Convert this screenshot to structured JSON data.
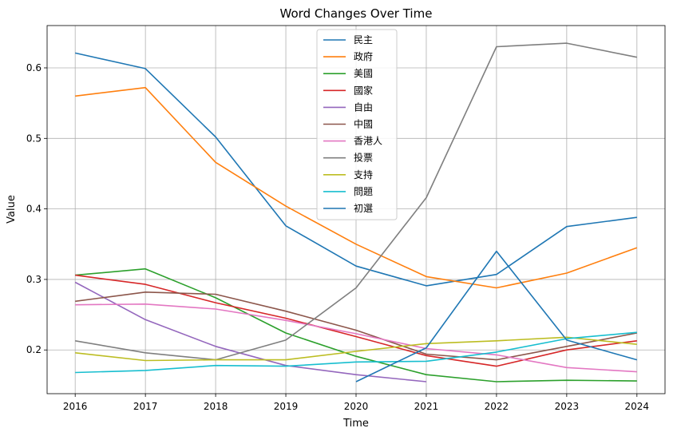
{
  "chart_data": {
    "type": "line",
    "title": "Word Changes Over Time",
    "xlabel": "Time",
    "ylabel": "Value",
    "x": [
      2016,
      2017,
      2018,
      2019,
      2020,
      2021,
      2022,
      2023,
      2024
    ],
    "xlim": [
      2015.6,
      2024.4
    ],
    "ylim": [
      0.138,
      0.66
    ],
    "yticks": [
      0.2,
      0.3,
      0.4,
      0.5,
      0.6
    ],
    "yticklabels": [
      "0.2",
      "0.3",
      "0.4",
      "0.5",
      "0.6"
    ],
    "grid": true,
    "legend_position": "top-center",
    "series": [
      {
        "name": "民主",
        "color": "#1f77b4",
        "values": [
          0.621,
          0.599,
          0.502,
          0.376,
          0.319,
          0.291,
          0.307,
          0.375,
          0.388
        ]
      },
      {
        "name": "政府",
        "color": "#ff7f0e",
        "values": [
          0.56,
          0.572,
          0.466,
          0.404,
          0.35,
          0.304,
          0.288,
          0.309,
          0.345
        ]
      },
      {
        "name": "美國",
        "color": "#2ca02c",
        "values": [
          0.306,
          0.315,
          0.274,
          0.224,
          0.191,
          0.165,
          0.155,
          0.157,
          0.156
        ]
      },
      {
        "name": "國家",
        "color": "#d62728",
        "values": [
          0.306,
          0.293,
          0.267,
          0.245,
          0.219,
          0.192,
          0.177,
          0.2,
          0.213
        ]
      },
      {
        "name": "自由",
        "color": "#9467bd",
        "values": [
          0.296,
          0.243,
          0.205,
          0.178,
          0.165,
          0.155,
          null,
          null,
          null
        ]
      },
      {
        "name": "中國",
        "color": "#8c564b",
        "values": [
          0.269,
          0.282,
          0.279,
          0.255,
          0.228,
          0.194,
          0.186,
          0.205,
          0.224
        ]
      },
      {
        "name": "香港人",
        "color": "#e377c2",
        "values": [
          0.264,
          0.265,
          0.258,
          0.242,
          0.223,
          0.202,
          0.193,
          0.175,
          0.169
        ]
      },
      {
        "name": "投票",
        "color": "#7f7f7f",
        "values": [
          0.213,
          0.196,
          0.186,
          0.214,
          0.288,
          0.416,
          0.63,
          0.635,
          0.615
        ]
      },
      {
        "name": "支持",
        "color": "#bcbd22",
        "values": [
          0.196,
          0.185,
          0.186,
          0.186,
          0.198,
          0.209,
          0.213,
          0.218,
          0.208
        ]
      },
      {
        "name": "問題",
        "color": "#17becf",
        "values": [
          0.168,
          0.171,
          0.178,
          0.177,
          0.183,
          0.184,
          0.197,
          0.216,
          0.225
        ]
      },
      {
        "name": "初選",
        "color": "#1f77b4",
        "values": [
          null,
          null,
          null,
          null,
          0.155,
          0.203,
          0.34,
          0.214,
          0.186
        ]
      }
    ]
  }
}
